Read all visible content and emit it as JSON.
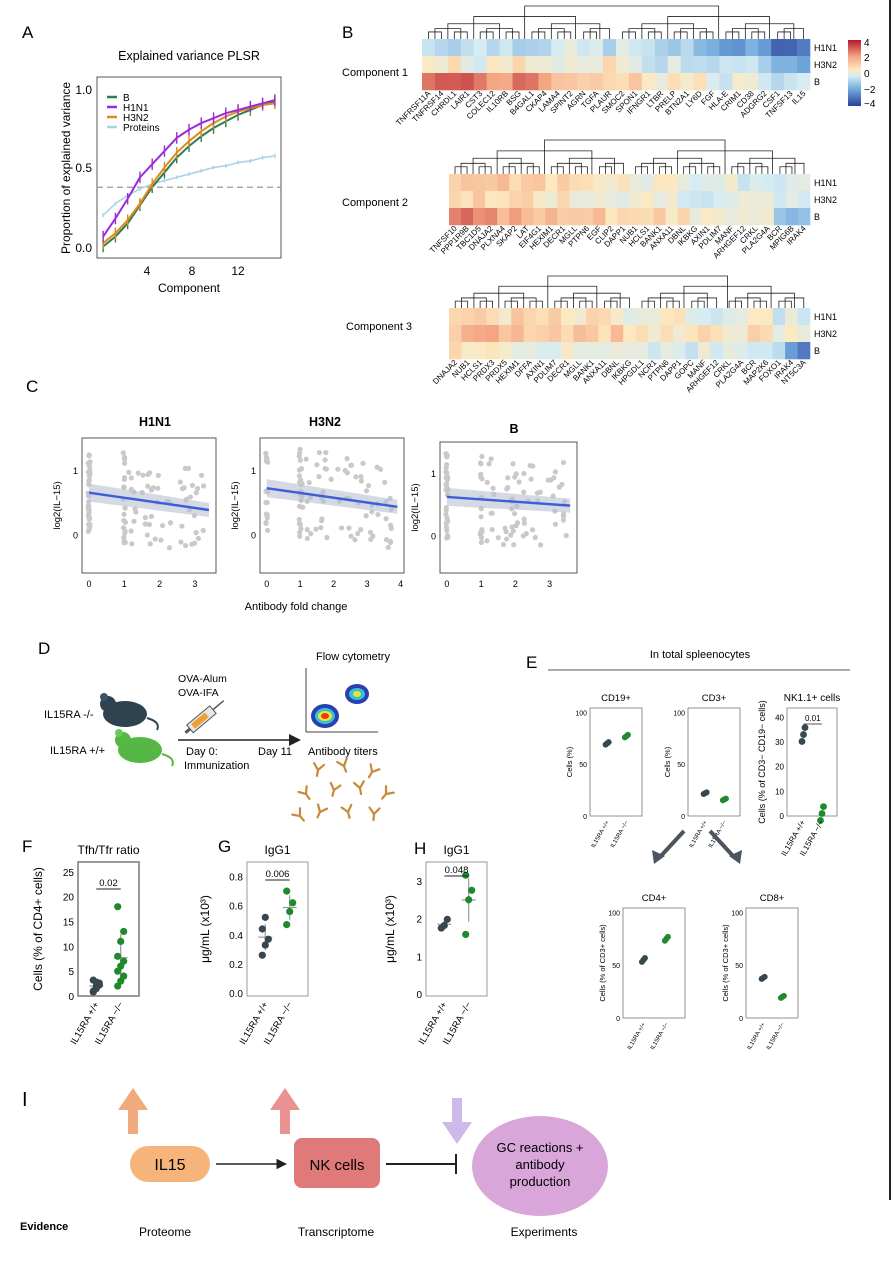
{
  "panels": {
    "A": "A",
    "B": "B",
    "C": "C",
    "D": "D",
    "E": "E",
    "F": "F",
    "G": "G",
    "H": "H",
    "I": "I"
  },
  "colors": {
    "B": "#2e7d4f",
    "H1N1": "#9a2bd6",
    "H3N2": "#e08a1e",
    "Proteins": "#a9d3ea",
    "grey_pts": "#c9c9c9",
    "fit": "#3b5fd9",
    "ko": "#1f8a2c",
    "wt": "#37474f",
    "il15": "#f7b47a",
    "nk": "#e07a7a",
    "gc": "#d9a6d9",
    "arrow_up1": "#f0a070",
    "arrow_up2": "#e88585",
    "arrow_down": "#c9b2e8"
  },
  "panelA": {
    "title": "Explained variance PLSR",
    "ylabel": "Proportion of explained variance",
    "xlabel": "Component",
    "yticks": [
      "0.0",
      "0.5",
      "1.0"
    ],
    "xticks": [
      "4",
      "8",
      "12"
    ],
    "legend": [
      "B",
      "H1N1",
      "H3N2",
      "Proteins"
    ]
  },
  "chart_data": [
    {
      "type": "line",
      "title": "Explained variance PLSR",
      "xlabel": "Component",
      "ylabel": "Proportion of explained variance",
      "xlim": [
        0.5,
        15.5
      ],
      "ylim": [
        -0.05,
        1.05
      ],
      "x": [
        1,
        2,
        3,
        4,
        5,
        6,
        7,
        8,
        9,
        10,
        11,
        12,
        13,
        14,
        15
      ],
      "series": [
        {
          "name": "B",
          "values": [
            0.02,
            0.08,
            0.16,
            0.27,
            0.38,
            0.47,
            0.56,
            0.63,
            0.69,
            0.74,
            0.78,
            0.82,
            0.85,
            0.88,
            0.9
          ]
        },
        {
          "name": "H1N1",
          "values": [
            0.08,
            0.19,
            0.31,
            0.44,
            0.52,
            0.6,
            0.68,
            0.73,
            0.77,
            0.8,
            0.83,
            0.85,
            0.87,
            0.89,
            0.91
          ]
        },
        {
          "name": "H3N2",
          "values": [
            0.04,
            0.1,
            0.18,
            0.28,
            0.4,
            0.5,
            0.59,
            0.66,
            0.72,
            0.77,
            0.81,
            0.84,
            0.86,
            0.88,
            0.89
          ]
        },
        {
          "name": "Proteins",
          "values": [
            0.21,
            0.28,
            0.33,
            0.37,
            0.4,
            0.42,
            0.44,
            0.46,
            0.48,
            0.5,
            0.51,
            0.53,
            0.54,
            0.56,
            0.57
          ]
        }
      ],
      "hline": 0.38,
      "legend": "top-left"
    },
    {
      "type": "heatmap",
      "title": "Component 1",
      "rows": [
        "H1N1",
        "H3N2",
        "B"
      ],
      "columns": [
        "TNFRSF11A",
        "TNFRSF14",
        "CHRDL1",
        "LAIR1",
        "CST3",
        "COLEC12",
        "IL10RB",
        "BSG",
        "B4GAL1",
        "CKAP4",
        "LAMA4",
        "SPINT2",
        "AGRN",
        "TGFA",
        "PLAUR",
        "SMOC2",
        "SPON1",
        "IFNGR1",
        "LTBR",
        "PRELP",
        "BTN2A1",
        "LY6D",
        "FGF",
        "HLA-E",
        "CRIM1",
        "CD38",
        "ADGRG2",
        "CSF1",
        "TNFSF13",
        "IL15"
      ],
      "colorbar": {
        "ticks": [
          "4",
          "2",
          "0",
          "−2",
          "−4"
        ],
        "min": -4,
        "max": 4
      }
    },
    {
      "type": "heatmap",
      "title": "Component 2",
      "rows": [
        "H1N1",
        "H3N2",
        "B"
      ],
      "columns": [
        "TNFSF10",
        "PPP1R9B",
        "TBC1D5",
        "DNAJA2",
        "PLXNA4",
        "SKAP2",
        "LAT",
        "EIF4G1",
        "HEXIM1",
        "DECR1",
        "MGLL",
        "PTPN6",
        "EGF",
        "CLIP2",
        "DAPP1",
        "NUB1",
        "HCLS1",
        "BANK1",
        "ANXA11",
        "DBNL",
        "IKBKG",
        "AXIN1",
        "PDLIM7",
        "MANF",
        "ARHGEF12",
        "CRKL",
        "PLA2G4A",
        "BCR",
        "MPIG6B",
        "IRAK4"
      ]
    },
    {
      "type": "heatmap",
      "title": "Component 3",
      "rows": [
        "H1N1",
        "H3N2",
        "B"
      ],
      "columns": [
        "DNAJA2",
        "NUB1",
        "HCLS1",
        "PRDX3",
        "PRDX5",
        "HEXIM1",
        "DFFA",
        "AXIN1",
        "PDLIM7",
        "DECR1",
        "MGLL",
        "BANK1",
        "ANXA11",
        "DBNL",
        "IKBKG",
        "HPGDL1",
        "NCR1",
        "PTPN6",
        "DAPP1",
        "GOPC",
        "MANF",
        "ARHGEF12",
        "CRKL",
        "PLA2G4A",
        "BCR",
        "MAP2K6",
        "FOXO1",
        "IRAK4",
        "NT5C3A"
      ]
    },
    {
      "type": "scatter",
      "title": "H1N1",
      "xlabel": "Antibody fold change",
      "ylabel": "log2(IL−15)",
      "xlim": [
        -0.2,
        3.6
      ],
      "ylim": [
        -0.6,
        1.5
      ],
      "fit": {
        "x": [
          0,
          3.4
        ],
        "y": [
          0.65,
          0.38
        ]
      }
    },
    {
      "type": "scatter",
      "title": "H3N2",
      "xlabel": "Antibody fold change",
      "ylabel": "log2(IL−15)",
      "xlim": [
        -0.2,
        4.1
      ],
      "ylim": [
        -0.6,
        1.5
      ],
      "fit": {
        "x": [
          0,
          3.9
        ],
        "y": [
          0.72,
          0.43
        ]
      }
    },
    {
      "type": "scatter",
      "title": "B",
      "xlabel": "Antibody fold change",
      "ylabel": "log2(IL−15)",
      "xlim": [
        -0.2,
        3.8
      ],
      "ylim": [
        -0.6,
        1.5
      ],
      "fit": {
        "x": [
          0,
          3.6
        ],
        "y": [
          0.62,
          0.48
        ]
      }
    }
  ],
  "panelB": {
    "comp1": "Component 1",
    "comp2": "Component 2",
    "comp3": "Component 3",
    "rows": [
      "H1N1",
      "H3N2",
      "B"
    ],
    "cb_ticks": [
      "4",
      "2",
      "0",
      "−2",
      "−4"
    ]
  },
  "panelC": {
    "titles": [
      "H1N1",
      "H3N2",
      "B"
    ],
    "ylabel": "log2(IL−15)",
    "yticks": [
      "0",
      "1"
    ],
    "xlabel": "Antibody fold change",
    "xticks1": [
      "0",
      "1",
      "2",
      "3"
    ],
    "xticks2": [
      "0",
      "1",
      "2",
      "3",
      "4"
    ],
    "xticks3": [
      "0",
      "1",
      "2",
      "3"
    ]
  },
  "panelD": {
    "mouse_ko": "IL15RA -/-",
    "mouse_wt": "IL15RA +/+",
    "adj1": "OVA-Alum",
    "adj2": "OVA-IFA",
    "day0": "Day 0:",
    "immun": "Immunization",
    "day11": "Day 11",
    "flow": "Flow cytometry",
    "titers": "Antibody titers"
  },
  "panelE": {
    "header": "In total spleenocytes",
    "cd19": "CD19+",
    "cd3": "CD3+",
    "nk": "NK1.1+ cells",
    "cd4": "CD4+",
    "cd8": "CD8+",
    "ylab_cells": "Cells (%)",
    "ylab_nk": "Cells (% of CD3− CD19− cells)",
    "ylab_cd3": "Cells (% of CD3+ cells)",
    "ticks100": [
      "0",
      "50",
      "100"
    ],
    "ticks40": [
      "0",
      "10",
      "20",
      "30",
      "40"
    ],
    "xlab_wt": "IL15RA +/+",
    "xlab_ko": "IL15RA −/−",
    "pval": "0.01",
    "values": {
      "cd19": [
        70,
        77
      ],
      "cd3": [
        22,
        16
      ],
      "nk": [
        33,
        1
      ],
      "cd4": [
        55,
        75
      ],
      "cd8": [
        38,
        20
      ]
    }
  },
  "panelF": {
    "title": "Tfh/Tfr ratio",
    "ylabel": "Cells (% of CD4+ cells)",
    "yticks": [
      "0",
      "5",
      "10",
      "15",
      "20",
      "25"
    ],
    "pval": "0.02",
    "xlab_wt": "IL15RA +/+",
    "xlab_ko": "IL15RA −/−"
  },
  "panelG": {
    "title": "IgG1",
    "ylabel": "μg/mL (x10³)",
    "yticks": [
      "0.0",
      "0.2",
      "0.4",
      "0.6",
      "0.8"
    ],
    "pval": "0.006",
    "xlab_wt": "IL15RA +/+",
    "xlab_ko": "IL15RA −/−"
  },
  "panelH": {
    "title": "IgG1",
    "ylabel": "μg/mL (x10³)",
    "yticks": [
      "0",
      "1",
      "2",
      "3"
    ],
    "pval": "0.048",
    "xlab_wt": "IL15RA +/+",
    "xlab_ko": "IL15RA −/−"
  },
  "panelI": {
    "il15": "IL15",
    "nk": "NK cells",
    "gc1": "GC reactions +",
    "gc2": "antibody",
    "gc3": "production",
    "evidence": "Evidence",
    "proteome": "Proteome",
    "transcriptome": "Transcriptome",
    "experiments": "Experiments"
  }
}
